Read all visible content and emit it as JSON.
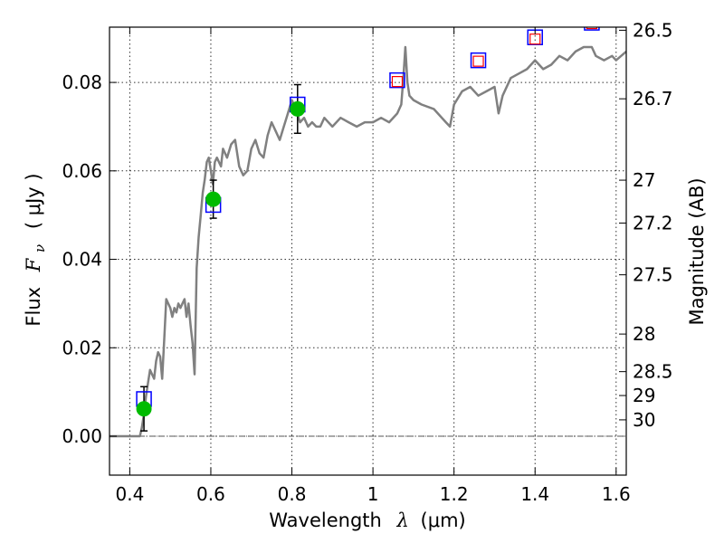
{
  "chart_data": {
    "type": "line",
    "title": "",
    "xlabel": {
      "prefix": "Wavelength",
      "symbol": "λ",
      "unit": "(μm)"
    },
    "ylabel": {
      "prefix": "Flux",
      "symbol": "F",
      "subscript": "ν",
      "unit": "( μJy )"
    },
    "ylabel_right": "Magnitude (AB)",
    "xlim": [
      0.35,
      1.625
    ],
    "ylim": [
      -0.0088,
      0.0925
    ],
    "grid": true,
    "x_ticks": [
      {
        "value": 0.4,
        "label": "0.4"
      },
      {
        "value": 0.6,
        "label": "0.6"
      },
      {
        "value": 0.8,
        "label": "0.8"
      },
      {
        "value": 1.0,
        "label": "1"
      },
      {
        "value": 1.2,
        "label": "1.2"
      },
      {
        "value": 1.4,
        "label": "1.4"
      },
      {
        "value": 1.6,
        "label": "1.6"
      }
    ],
    "y_ticks": [
      {
        "value": 0.0,
        "label": "0.00"
      },
      {
        "value": 0.02,
        "label": "0.02"
      },
      {
        "value": 0.04,
        "label": "0.04"
      },
      {
        "value": 0.06,
        "label": "0.06"
      },
      {
        "value": 0.08,
        "label": "0.08"
      }
    ],
    "y_right_ticks": [
      {
        "label": "26.5",
        "flux": 0.0918
      },
      {
        "label": "26.7",
        "flux": 0.0763
      },
      {
        "label": "27",
        "flux": 0.0579
      },
      {
        "label": "27.2",
        "flux": 0.0482
      },
      {
        "label": "27.5",
        "flux": 0.0365
      },
      {
        "label": "28",
        "flux": 0.0231
      },
      {
        "label": "28.5",
        "flux": 0.0146
      },
      {
        "label": "29",
        "flux": 0.0092
      },
      {
        "label": "30",
        "flux": 0.0037
      }
    ],
    "series": [
      {
        "name": "model-spectrum",
        "color": "#808080",
        "x": [
          0.35,
          0.4,
          0.425,
          0.43,
          0.435,
          0.44,
          0.445,
          0.45,
          0.455,
          0.46,
          0.465,
          0.47,
          0.475,
          0.48,
          0.485,
          0.49,
          0.495,
          0.5,
          0.505,
          0.51,
          0.515,
          0.52,
          0.525,
          0.53,
          0.535,
          0.54,
          0.545,
          0.55,
          0.555,
          0.56,
          0.565,
          0.57,
          0.575,
          0.58,
          0.585,
          0.59,
          0.595,
          0.6,
          0.605,
          0.61,
          0.615,
          0.62,
          0.625,
          0.63,
          0.64,
          0.65,
          0.66,
          0.67,
          0.68,
          0.69,
          0.7,
          0.71,
          0.72,
          0.73,
          0.74,
          0.75,
          0.76,
          0.77,
          0.78,
          0.79,
          0.8,
          0.81,
          0.82,
          0.83,
          0.84,
          0.85,
          0.86,
          0.87,
          0.88,
          0.89,
          0.9,
          0.92,
          0.94,
          0.96,
          0.98,
          1.0,
          1.02,
          1.04,
          1.06,
          1.07,
          1.075,
          1.08,
          1.085,
          1.09,
          1.1,
          1.12,
          1.15,
          1.18,
          1.19,
          1.2,
          1.22,
          1.24,
          1.26,
          1.28,
          1.3,
          1.31,
          1.32,
          1.34,
          1.36,
          1.38,
          1.4,
          1.42,
          1.44,
          1.46,
          1.48,
          1.5,
          1.52,
          1.54,
          1.55,
          1.57,
          1.59,
          1.6,
          1.625
        ],
        "y": [
          0.0,
          0.0,
          0.0,
          0.002,
          0.005,
          0.009,
          0.012,
          0.015,
          0.014,
          0.013,
          0.017,
          0.019,
          0.018,
          0.013,
          0.022,
          0.031,
          0.03,
          0.029,
          0.027,
          0.029,
          0.028,
          0.03,
          0.029,
          0.03,
          0.031,
          0.027,
          0.03,
          0.025,
          0.021,
          0.014,
          0.038,
          0.045,
          0.05,
          0.055,
          0.058,
          0.062,
          0.063,
          0.06,
          0.057,
          0.062,
          0.063,
          0.062,
          0.061,
          0.065,
          0.063,
          0.066,
          0.067,
          0.061,
          0.059,
          0.06,
          0.065,
          0.067,
          0.064,
          0.063,
          0.068,
          0.071,
          0.069,
          0.067,
          0.07,
          0.073,
          0.076,
          0.074,
          0.071,
          0.072,
          0.07,
          0.071,
          0.07,
          0.07,
          0.072,
          0.071,
          0.07,
          0.072,
          0.071,
          0.07,
          0.071,
          0.071,
          0.072,
          0.071,
          0.073,
          0.075,
          0.081,
          0.088,
          0.08,
          0.077,
          0.076,
          0.075,
          0.074,
          0.071,
          0.07,
          0.075,
          0.078,
          0.079,
          0.077,
          0.078,
          0.079,
          0.073,
          0.077,
          0.081,
          0.082,
          0.083,
          0.085,
          0.083,
          0.084,
          0.086,
          0.085,
          0.087,
          0.088,
          0.088,
          0.086,
          0.085,
          0.086,
          0.085,
          0.087
        ]
      },
      {
        "name": "observed-photometry",
        "color": "#00bb00",
        "points": [
          {
            "x": 0.435,
            "y": 0.0062,
            "err_low": 0.005,
            "err_high": 0.005
          },
          {
            "x": 0.606,
            "y": 0.0536,
            "err_low": 0.0043,
            "err_high": 0.0043
          },
          {
            "x": 0.814,
            "y": 0.074,
            "err_low": 0.0055,
            "err_high": 0.0055
          }
        ]
      },
      {
        "name": "model-band-flux",
        "color": "#0000ff",
        "points": [
          {
            "x": 0.435,
            "y": 0.0084
          },
          {
            "x": 0.606,
            "y": 0.0523
          },
          {
            "x": 0.814,
            "y": 0.075
          },
          {
            "x": 1.06,
            "y": 0.0805
          },
          {
            "x": 1.26,
            "y": 0.085
          },
          {
            "x": 1.4,
            "y": 0.0902
          },
          {
            "x": 1.54,
            "y": 0.0935
          }
        ]
      },
      {
        "name": "predicted-flux",
        "color": "#ff0000",
        "points": [
          {
            "x": 1.06,
            "y": 0.0802
          },
          {
            "x": 1.26,
            "y": 0.0848
          },
          {
            "x": 1.4,
            "y": 0.0898
          },
          {
            "x": 1.54,
            "y": 0.0933
          }
        ]
      }
    ]
  }
}
